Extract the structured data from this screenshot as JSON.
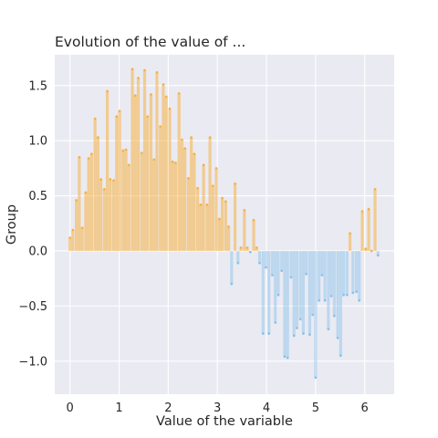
{
  "chart_data": {
    "type": "bar",
    "title": "Evolution of the value of ...",
    "xlabel": "Value of the variable",
    "ylabel": "Group",
    "xlim": [
      -0.31,
      6.6
    ],
    "ylim": [
      -1.3,
      1.78
    ],
    "xticks": [
      0,
      1,
      2,
      3,
      4,
      5,
      6
    ],
    "xtick_labels": [
      "0",
      "1",
      "2",
      "3",
      "4",
      "5",
      "6"
    ],
    "yticks": [
      -1.0,
      -0.5,
      0.0,
      0.5,
      1.0,
      1.5
    ],
    "ytick_labels": [
      "−1.0",
      "−0.5",
      "0.0",
      "0.5",
      "1.0",
      "1.5"
    ],
    "grid": true,
    "colors": {
      "positive": "#f5b041",
      "negative": "#85c1e9",
      "background": "#eaeaf2",
      "grid": "#ffffff"
    },
    "x": [
      0.0,
      0.06,
      0.13,
      0.19,
      0.25,
      0.32,
      0.38,
      0.44,
      0.51,
      0.57,
      0.63,
      0.7,
      0.76,
      0.82,
      0.89,
      0.95,
      1.01,
      1.08,
      1.14,
      1.2,
      1.27,
      1.33,
      1.39,
      1.46,
      1.52,
      1.58,
      1.65,
      1.71,
      1.77,
      1.84,
      1.9,
      1.96,
      2.03,
      2.09,
      2.15,
      2.22,
      2.28,
      2.34,
      2.41,
      2.47,
      2.53,
      2.6,
      2.66,
      2.72,
      2.79,
      2.85,
      2.91,
      2.98,
      3.04,
      3.1,
      3.17,
      3.23,
      3.29,
      3.36,
      3.42,
      3.48,
      3.55,
      3.61,
      3.67,
      3.74,
      3.8,
      3.86,
      3.93,
      3.99,
      4.05,
      4.12,
      4.18,
      4.24,
      4.31,
      4.37,
      4.43,
      4.5,
      4.56,
      4.62,
      4.69,
      4.75,
      4.81,
      4.88,
      4.94,
      5.0,
      5.07,
      5.13,
      5.19,
      5.26,
      5.32,
      5.38,
      5.45,
      5.51,
      5.57,
      5.64,
      5.7,
      5.76,
      5.83,
      5.89,
      5.95,
      6.02,
      6.08,
      6.14,
      6.21,
      6.27
    ],
    "values": [
      0.12,
      0.19,
      0.46,
      0.85,
      0.21,
      0.53,
      0.84,
      0.88,
      1.2,
      1.03,
      0.65,
      0.56,
      1.45,
      0.65,
      0.64,
      1.22,
      1.27,
      0.91,
      0.92,
      0.78,
      1.65,
      1.41,
      1.57,
      0.89,
      1.64,
      1.22,
      1.42,
      0.83,
      1.62,
      1.13,
      1.51,
      1.4,
      1.29,
      0.81,
      0.8,
      1.43,
      1.01,
      0.93,
      0.66,
      1.03,
      0.88,
      0.57,
      0.42,
      0.78,
      0.42,
      1.03,
      0.59,
      0.75,
      0.29,
      0.48,
      0.45,
      0.22,
      -0.3,
      0.61,
      -0.11,
      0.03,
      0.37,
      0.03,
      -0.01,
      0.28,
      0.03,
      -0.11,
      -0.75,
      -0.15,
      -0.75,
      -0.22,
      -0.65,
      -0.4,
      -0.18,
      -0.96,
      -0.97,
      -0.24,
      -0.77,
      -0.7,
      -0.62,
      -0.75,
      -0.21,
      -0.76,
      -0.58,
      -1.15,
      -0.45,
      -0.22,
      -0.45,
      -0.71,
      -0.41,
      -0.59,
      -0.79,
      -0.95,
      -0.4,
      -0.4,
      0.16,
      -0.38,
      -0.37,
      -0.45,
      0.36,
      0.02,
      0.38,
      0.0,
      0.56,
      -0.04
    ]
  }
}
